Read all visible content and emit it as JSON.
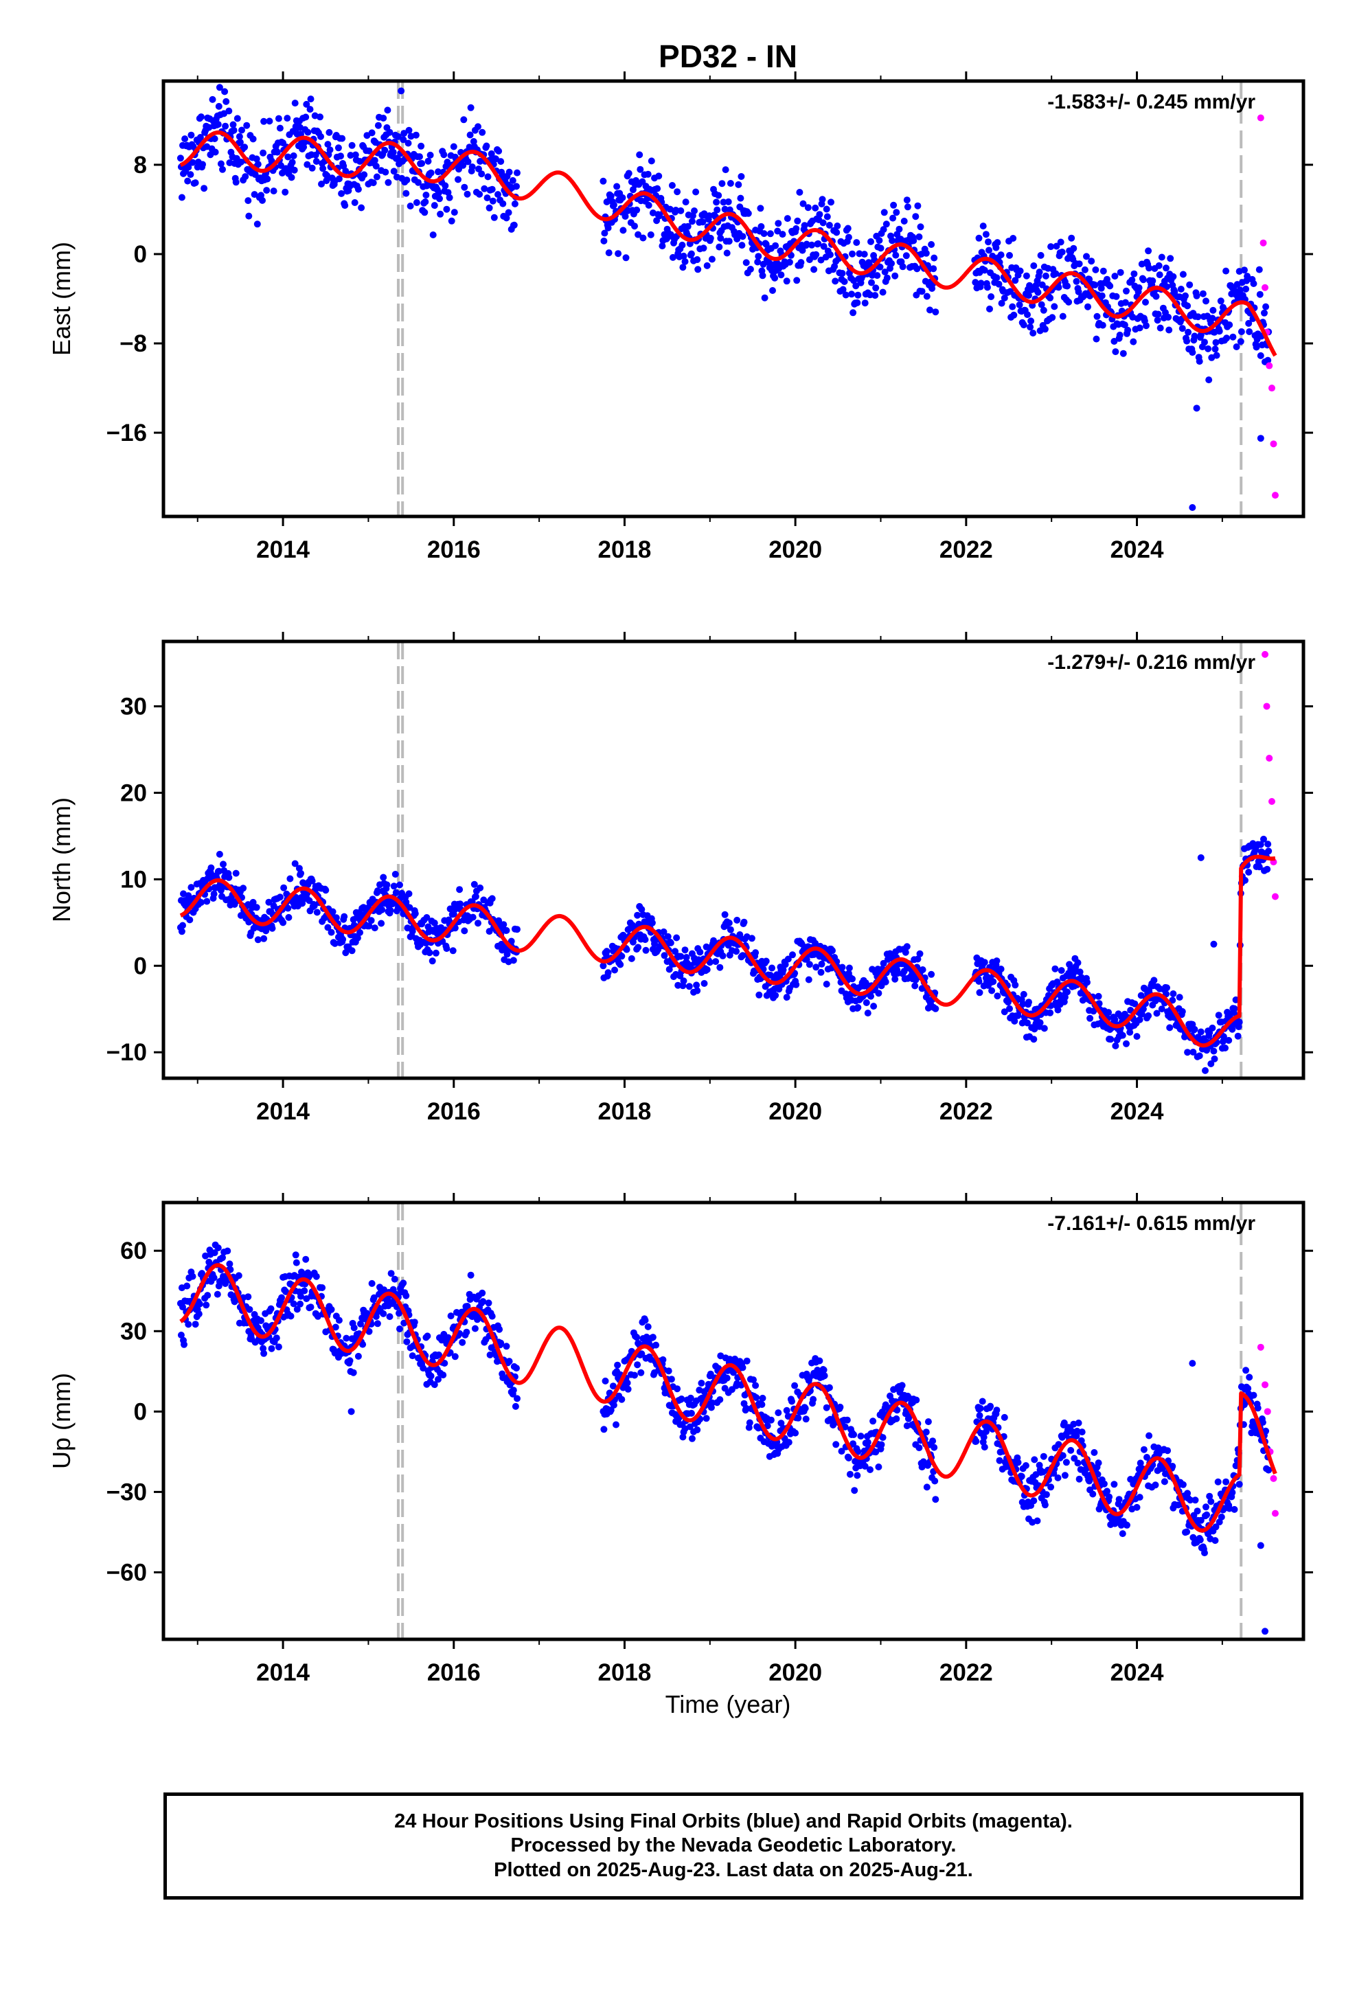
{
  "title": "PD32 - IN",
  "xlabel": "Time (year)",
  "caption": [
    "24 Hour Positions Using Final Orbits (blue) and Rapid Orbits (magenta).",
    "Processed by the Nevada Geodetic Laboratory.",
    "Plotted on 2025-Aug-23. Last data on 2025-Aug-21."
  ],
  "colors": {
    "final": "#0000ff",
    "rapid": "#ff00ff",
    "model": "#ff0000",
    "steps": "#bbbbbb"
  },
  "chart_data": [
    {
      "type": "scatter",
      "ylabel": "East (mm)",
      "rate_label": "-1.583+/- 0.245 mm/yr",
      "xlim": [
        2012.6,
        2025.95
      ],
      "ylim": [
        -23.5,
        15.5
      ],
      "xticks": [
        2014,
        2016,
        2018,
        2020,
        2022,
        2024
      ],
      "xticklabels": [
        "2014",
        "2016",
        "2018",
        "2020",
        "2022",
        "2024"
      ],
      "yticks": [
        8,
        0,
        -8,
        -16
      ],
      "yticklabels": [
        "8",
        "0",
        "−8",
        "−16"
      ],
      "grid": false,
      "steps": [
        2015.35,
        2015.4,
        2025.22
      ],
      "final_segments": [
        [
          2012.8,
          2016.75
        ],
        [
          2017.75,
          2021.65
        ],
        [
          2022.1,
          2025.55
        ]
      ],
      "trend": {
        "x": [
          2012.8,
          2016.0,
          2019.5,
          2023.0,
          2025.3,
          2025.62
        ],
        "y": [
          9.5,
          8.0,
          1.5,
          -3.0,
          -6.0,
          -8.0
        ]
      },
      "seasonal_amp": 1.6,
      "scatter_sd": 1.8,
      "rapid": {
        "x": [
          2025.45,
          2025.48,
          2025.5,
          2025.52,
          2025.55,
          2025.58,
          2025.6,
          2025.62
        ],
        "y": [
          12.2,
          1.0,
          -3.0,
          -7.0,
          -10.0,
          -12.0,
          -17.0,
          -21.6
        ]
      },
      "outliers": {
        "x": [
          2024.65,
          2024.7,
          2025.45
        ],
        "y": [
          -22.7,
          -13.8,
          -16.5
        ]
      }
    },
    {
      "type": "scatter",
      "ylabel": "North (mm)",
      "rate_label": "-1.279+/- 0.216 mm/yr",
      "xlim": [
        2012.6,
        2025.95
      ],
      "ylim": [
        -13,
        37.5
      ],
      "xticks": [
        2014,
        2016,
        2018,
        2020,
        2022,
        2024
      ],
      "xticklabels": [
        "2014",
        "2016",
        "2018",
        "2020",
        "2022",
        "2024"
      ],
      "yticks": [
        30,
        20,
        10,
        0,
        -10
      ],
      "yticklabels": [
        "30",
        "20",
        "10",
        "0",
        "−10"
      ],
      "grid": false,
      "steps": [
        2015.35,
        2015.4,
        2025.22
      ],
      "final_segments": [
        [
          2012.8,
          2016.75
        ],
        [
          2017.75,
          2021.65
        ],
        [
          2022.1,
          2025.55
        ]
      ],
      "trend": {
        "x": [
          2012.8,
          2016.0,
          2020.0,
          2024.0,
          2025.2,
          2025.22,
          2025.62
        ],
        "y": [
          8.0,
          5.0,
          0.0,
          -5.0,
          -8.0,
          9.0,
          14.0
        ]
      },
      "seasonal_amp": 2.3,
      "scatter_sd": 1.2,
      "rapid": {
        "x": [
          2025.5,
          2025.52,
          2025.55,
          2025.58,
          2025.6,
          2025.62
        ],
        "y": [
          36.0,
          30.0,
          24.0,
          19.0,
          12.0,
          8.0
        ]
      },
      "outliers": {
        "x": [
          2024.75,
          2024.9
        ],
        "y": [
          12.5,
          2.5
        ]
      }
    },
    {
      "type": "scatter",
      "ylabel": "Up (mm)",
      "rate_label": "-7.161+/- 0.615 mm/yr",
      "xlim": [
        2012.6,
        2025.95
      ],
      "ylim": [
        -85,
        78
      ],
      "xticks": [
        2014,
        2016,
        2018,
        2020,
        2022,
        2024
      ],
      "xticklabels": [
        "2014",
        "2016",
        "2018",
        "2020",
        "2022",
        "2024"
      ],
      "yticks": [
        60,
        30,
        0,
        -30,
        -60
      ],
      "yticklabels": [
        "60",
        "30",
        "0",
        "−30",
        "−60"
      ],
      "grid": false,
      "steps": [
        2015.35,
        2015.4,
        2025.22
      ],
      "final_segments": [
        [
          2012.8,
          2016.75
        ],
        [
          2017.75,
          2021.65
        ],
        [
          2022.1,
          2025.55
        ]
      ],
      "trend": {
        "x": [
          2012.8,
          2016.0,
          2020.0,
          2024.0,
          2025.2,
          2025.22,
          2025.62
        ],
        "y": [
          45.0,
          28.0,
          0.0,
          -28.0,
          -35.0,
          -5.0,
          -15.0
        ]
      },
      "seasonal_amp": 12.0,
      "scatter_sd": 5.0,
      "rapid": {
        "x": [
          2025.45,
          2025.5,
          2025.53,
          2025.56,
          2025.6,
          2025.62
        ],
        "y": [
          24.0,
          10.0,
          0.0,
          -15.0,
          -25.0,
          -38.0
        ]
      },
      "outliers": {
        "x": [
          2014.8,
          2024.65,
          2025.45,
          2025.5
        ],
        "y": [
          0.0,
          18.0,
          -50.0,
          -82.0
        ]
      }
    }
  ]
}
